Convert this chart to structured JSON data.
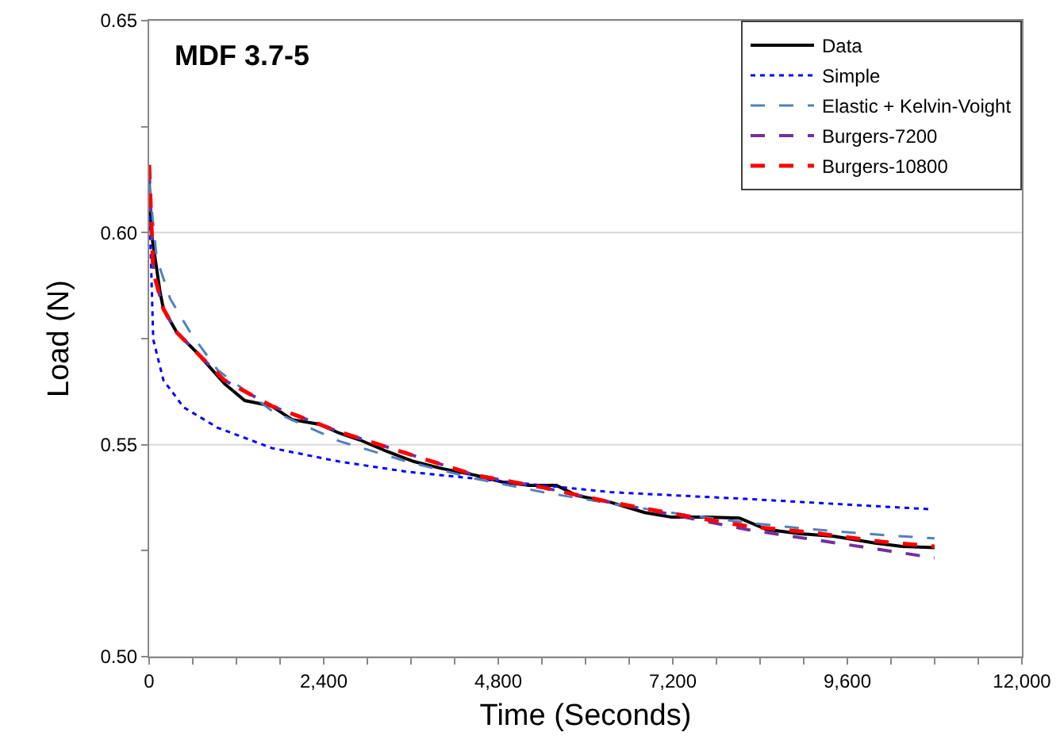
{
  "chart_data": {
    "type": "line",
    "title": "MDF 3.7-5",
    "xlabel": "Time (Seconds)",
    "ylabel": "Load (N)",
    "xlim": [
      0,
      12000
    ],
    "ylim": [
      0.5,
      0.65
    ],
    "xticks": [
      {
        "value": 0,
        "label": "0"
      },
      {
        "value": 600,
        "label": null
      },
      {
        "value": 1200,
        "label": null
      },
      {
        "value": 1800,
        "label": null
      },
      {
        "value": 2400,
        "label": "2,400"
      },
      {
        "value": 3000,
        "label": null
      },
      {
        "value": 3600,
        "label": null
      },
      {
        "value": 4200,
        "label": null
      },
      {
        "value": 4800,
        "label": "4,800"
      },
      {
        "value": 5400,
        "label": null
      },
      {
        "value": 6000,
        "label": null
      },
      {
        "value": 6600,
        "label": null
      },
      {
        "value": 7200,
        "label": "7,200"
      },
      {
        "value": 7800,
        "label": null
      },
      {
        "value": 8400,
        "label": null
      },
      {
        "value": 9000,
        "label": null
      },
      {
        "value": 9600,
        "label": "9,600"
      },
      {
        "value": 10200,
        "label": null
      },
      {
        "value": 10800,
        "label": null
      },
      {
        "value": 11400,
        "label": null
      },
      {
        "value": 12000,
        "label": "12,000"
      }
    ],
    "yticks": [
      {
        "value": 0.5,
        "label": "0.50"
      },
      {
        "value": 0.525,
        "label": null
      },
      {
        "value": 0.55,
        "label": "0.55"
      },
      {
        "value": 0.575,
        "label": null
      },
      {
        "value": 0.6,
        "label": "0.60"
      },
      {
        "value": 0.625,
        "label": null
      },
      {
        "value": 0.65,
        "label": "0.65"
      }
    ],
    "grid": "y",
    "legend": "top right",
    "marker": "none",
    "series": [
      {
        "name": "Data",
        "color": "#000000",
        "line_style": "solid",
        "x": [
          0,
          30,
          150,
          196,
          382,
          662,
          1034,
          1314,
          1686,
          1966,
          2339,
          2618,
          2898,
          3270,
          3643,
          4016,
          4481,
          4854,
          5226,
          5599,
          5879,
          6345,
          6811,
          7183,
          7649,
          8115,
          8487,
          8953,
          9419,
          9978,
          10351,
          10798
        ],
        "values": [
          0.612,
          0.6,
          0.586,
          0.582,
          0.5764,
          0.5716,
          0.5644,
          0.5604,
          0.5591,
          0.5559,
          0.5548,
          0.5527,
          0.5511,
          0.5484,
          0.546,
          0.5444,
          0.5428,
          0.5412,
          0.5404,
          0.5404,
          0.538,
          0.5364,
          0.534,
          0.5329,
          0.5329,
          0.5327,
          0.53,
          0.529,
          0.5284,
          0.5268,
          0.526,
          0.5257
        ]
      },
      {
        "name": "Simple",
        "color": "#0000ff",
        "line_style": "dotted",
        "x": [
          0,
          56,
          196,
          475,
          941,
          1686,
          2618,
          3549,
          4481,
          5412,
          6345,
          8208,
          10723
        ],
        "values": [
          0.6084,
          0.5748,
          0.5652,
          0.5588,
          0.554,
          0.5492,
          0.546,
          0.5436,
          0.542,
          0.5404,
          0.5388,
          0.5372,
          0.5348
        ]
      },
      {
        "name": "Elastic + Kelvin-Voight",
        "color": "#4f81bd",
        "line_style": "dashed",
        "x": [
          0,
          103,
          289,
          568,
          941,
          1686,
          2618,
          3549,
          4481,
          5412,
          6345,
          7276,
          8208,
          9140,
          10071,
          10798
        ],
        "values": [
          0.6116,
          0.594,
          0.5844,
          0.5764,
          0.5676,
          0.558,
          0.5508,
          0.546,
          0.542,
          0.5388,
          0.5361,
          0.5337,
          0.5316,
          0.53,
          0.5287,
          0.5279
        ]
      },
      {
        "name": "Burgers-7200",
        "color": "#7030a0",
        "line_style": "dashed",
        "x": [
          0,
          56,
          196,
          382,
          662,
          1034,
          1686,
          2618,
          3549,
          4481,
          5412,
          6345,
          7276,
          8208,
          9140,
          10071,
          10798
        ],
        "values": [
          0.615,
          0.5908,
          0.582,
          0.5764,
          0.5716,
          0.5652,
          0.5591,
          0.553,
          0.5479,
          0.5428,
          0.5399,
          0.5364,
          0.5332,
          0.53,
          0.5276,
          0.5252,
          0.5233
        ]
      },
      {
        "name": "Burgers-10800",
        "color": "#ff0000",
        "line_style": "dashed",
        "x": [
          0,
          56,
          196,
          382,
          662,
          1034,
          1686,
          2618,
          3549,
          4481,
          5412,
          6345,
          7276,
          8208,
          9140,
          10071,
          10798
        ],
        "values": [
          0.616,
          0.5908,
          0.582,
          0.5764,
          0.5716,
          0.5652,
          0.5591,
          0.553,
          0.5479,
          0.5428,
          0.5399,
          0.5364,
          0.5335,
          0.5308,
          0.5292,
          0.5271,
          0.526
        ]
      }
    ]
  }
}
